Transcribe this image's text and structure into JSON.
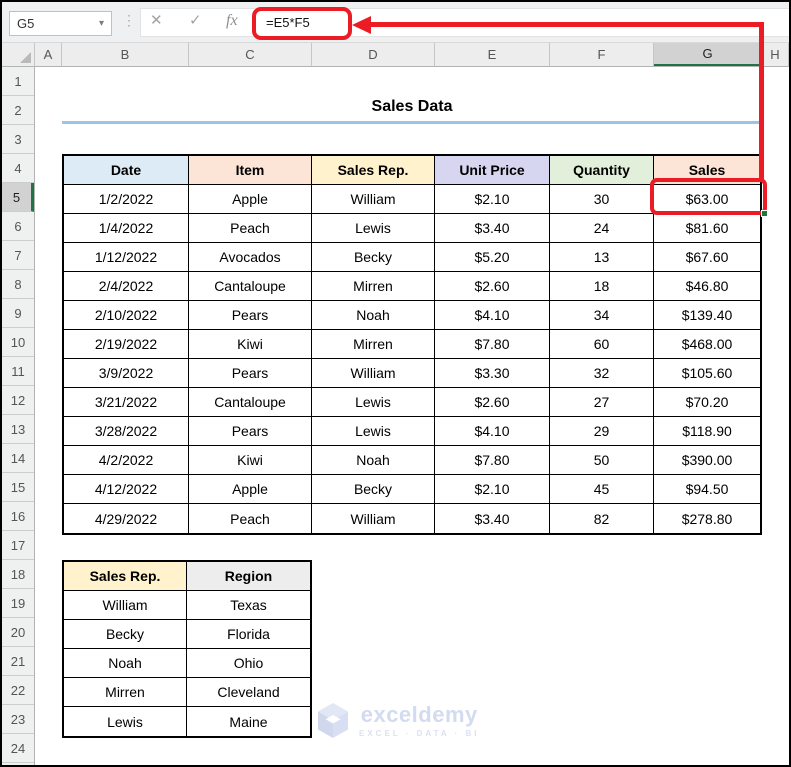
{
  "toolbar": {
    "name_box": "G5",
    "formula": "=E5*F5",
    "fx_label": "fx",
    "cancel_glyph": "✕",
    "enter_glyph": "✓",
    "caret_glyph": "▾",
    "dots_glyph": "⋮"
  },
  "sheet": {
    "column_headers": [
      "A",
      "B",
      "C",
      "D",
      "E",
      "F",
      "G",
      "H"
    ],
    "selected_column": "G",
    "row_headers": [
      1,
      2,
      3,
      4,
      5,
      6,
      7,
      8,
      9,
      10,
      11,
      12,
      13,
      14,
      15,
      16,
      17,
      18,
      19,
      20,
      21,
      22,
      23,
      24
    ],
    "selected_row": 5
  },
  "title": "Sales Data",
  "main_table": {
    "columns": [
      {
        "label": "Date",
        "bg": "#DDEBF7"
      },
      {
        "label": "Item",
        "bg": "#FCE4D6"
      },
      {
        "label": "Sales Rep.",
        "bg": "#FFF2CC"
      },
      {
        "label": "Unit Price",
        "bg": "#D6D6F0"
      },
      {
        "label": "Quantity",
        "bg": "#E2EFDA"
      },
      {
        "label": "Sales",
        "bg": "#FCE4D6"
      }
    ],
    "rows": [
      [
        "1/2/2022",
        "Apple",
        "William",
        "$2.10",
        "30",
        "$63.00"
      ],
      [
        "1/4/2022",
        "Peach",
        "Lewis",
        "$3.40",
        "24",
        "$81.60"
      ],
      [
        "1/12/2022",
        "Avocados",
        "Becky",
        "$5.20",
        "13",
        "$67.60"
      ],
      [
        "2/4/2022",
        "Cantaloupe",
        "Mirren",
        "$2.60",
        "18",
        "$46.80"
      ],
      [
        "2/10/2022",
        "Pears",
        "Noah",
        "$4.10",
        "34",
        "$139.40"
      ],
      [
        "2/19/2022",
        "Kiwi",
        "Mirren",
        "$7.80",
        "60",
        "$468.00"
      ],
      [
        "3/9/2022",
        "Pears",
        "William",
        "$3.30",
        "32",
        "$105.60"
      ],
      [
        "3/21/2022",
        "Cantaloupe",
        "Lewis",
        "$2.60",
        "27",
        "$70.20"
      ],
      [
        "3/28/2022",
        "Pears",
        "Lewis",
        "$4.10",
        "29",
        "$118.90"
      ],
      [
        "4/2/2022",
        "Kiwi",
        "Noah",
        "$7.80",
        "50",
        "$390.00"
      ],
      [
        "4/12/2022",
        "Apple",
        "Becky",
        "$2.10",
        "45",
        "$94.50"
      ],
      [
        "4/29/2022",
        "Peach",
        "William",
        "$3.40",
        "82",
        "$278.80"
      ]
    ]
  },
  "lookup_table": {
    "columns": [
      {
        "label": "Sales Rep.",
        "bg": "#FFF2CC"
      },
      {
        "label": "Region",
        "bg": "#EDEDED"
      }
    ],
    "rows": [
      [
        "William",
        "Texas"
      ],
      [
        "Becky",
        "Florida"
      ],
      [
        "Noah",
        "Ohio"
      ],
      [
        "Mirren",
        "Cleveland"
      ],
      [
        "Lewis",
        "Maine"
      ]
    ]
  },
  "watermark": {
    "brand": "exceldemy",
    "tagline": "EXCEL · DATA · BI"
  },
  "colors": {
    "annotation_red": "#EC1C24",
    "excel_green": "#217346",
    "title_underline": "#9DC3E6"
  }
}
